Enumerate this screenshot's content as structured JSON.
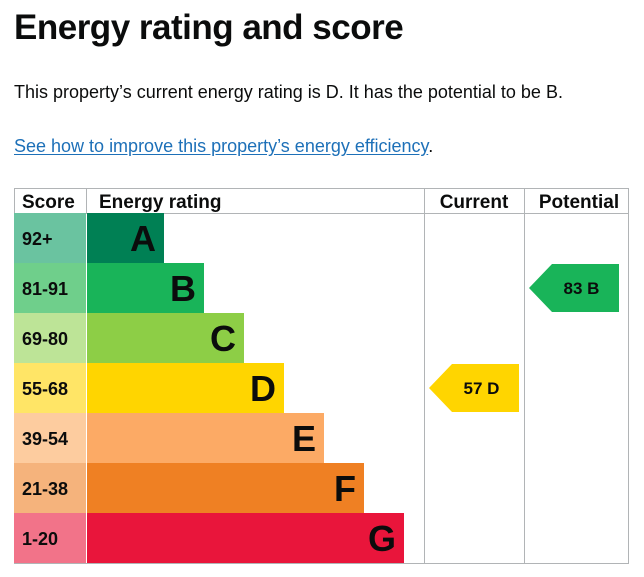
{
  "page": {
    "title": "Energy rating and score",
    "summary": "This property’s current energy rating is D. It has the potential to be B.",
    "improve_link": "See how to improve this property’s energy efficiency",
    "improve_link_suffix": "."
  },
  "table": {
    "headers": {
      "score": "Score",
      "rating": "Energy rating",
      "current": "Current",
      "potential": "Potential"
    }
  },
  "chart_data": {
    "type": "table",
    "bands": [
      {
        "score": "92+",
        "letter": "A",
        "color": "#008054",
        "score_bg": "#6ac3a0"
      },
      {
        "score": "81-91",
        "letter": "B",
        "color": "#19b459",
        "score_bg": "#6fcf8b"
      },
      {
        "score": "69-80",
        "letter": "C",
        "color": "#8dce46",
        "score_bg": "#bde497"
      },
      {
        "score": "55-68",
        "letter": "D",
        "color": "#ffd500",
        "score_bg": "#ffe566"
      },
      {
        "score": "39-54",
        "letter": "E",
        "color": "#fcaa65",
        "score_bg": "#fdcc9f"
      },
      {
        "score": "21-38",
        "letter": "F",
        "color": "#ef8023",
        "score_bg": "#f5b37c"
      },
      {
        "score": "1-20",
        "letter": "G",
        "color": "#e9153b",
        "score_bg": "#f27389"
      }
    ],
    "current": {
      "score": 57,
      "letter": "D",
      "label": "57 D",
      "color": "#ffd500"
    },
    "potential": {
      "score": 83,
      "letter": "B",
      "label": "83 B",
      "color": "#19b459"
    }
  }
}
